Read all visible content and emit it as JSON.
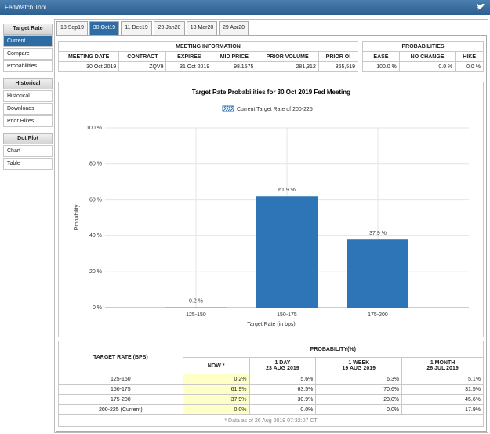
{
  "header": {
    "title": "FedWatch Tool"
  },
  "sidebar": [
    {
      "heading": "Target Rate",
      "items": [
        "Current",
        "Compare",
        "Probabilities"
      ]
    },
    {
      "heading": "Historical",
      "items": [
        "Historical",
        "Downloads",
        "Prior Hikes"
      ]
    },
    {
      "heading": "Dot Plot",
      "items": [
        "Chart",
        "Table"
      ]
    }
  ],
  "tabs": [
    "18 Sep19",
    "30 Oct19",
    "11 Dec19",
    "29 Jan20",
    "18 Mar20",
    "29 Apr20"
  ],
  "active_tab": 1,
  "meeting_info": {
    "title": "MEETING INFORMATION",
    "columns": [
      "MEETING DATE",
      "CONTRACT",
      "EXPIRES",
      "MID PRICE",
      "PRIOR VOLUME",
      "PRIOR OI"
    ],
    "row": [
      "30 Oct 2019",
      "ZQV9",
      "31 Oct 2019",
      "98.1575",
      "281,312",
      "365,519"
    ]
  },
  "probabilities": {
    "title": "PROBABILITIES",
    "columns": [
      "EASE",
      "NO CHANGE",
      "HIKE"
    ],
    "row": [
      "100.0 %",
      "0.0 %",
      "0.0 %"
    ]
  },
  "chart_data": {
    "type": "bar",
    "title": "Target Rate Probabilities for 30 Oct 2019 Fed Meeting",
    "legend_label": "Current Target Rate of 200-225",
    "categories": [
      "125-150",
      "150-175",
      "175-200"
    ],
    "values": [
      0.2,
      61.9,
      37.9
    ],
    "value_labels": [
      "0.2 %",
      "61.9 %",
      "37.9 %"
    ],
    "color": "#2d75b6",
    "xlabel": "Target Rate (in bps)",
    "ylabel": "Probability",
    "ylim": [
      0,
      100
    ],
    "yticks": [
      {
        "value": 0,
        "label": "0 %"
      },
      {
        "value": 20,
        "label": "20 %"
      },
      {
        "value": 40,
        "label": "40 %"
      },
      {
        "value": 60,
        "label": "60 %"
      },
      {
        "value": 80,
        "label": "80 %"
      },
      {
        "value": 100,
        "label": "100 %"
      }
    ],
    "grid": true
  },
  "table": {
    "row_header": "TARGET RATE (BPS)",
    "group_header": "PROBABILITY(%)",
    "columns": [
      {
        "label": "NOW *"
      },
      {
        "label": "1 DAY",
        "date": "23 AUG 2019"
      },
      {
        "label": "1 WEEK",
        "date": "19 AUG 2019"
      },
      {
        "label": "1 MONTH",
        "date": "26 JUL 2019"
      }
    ],
    "rows": [
      [
        "125-150",
        "0.2%",
        "5.6%",
        "6.3%",
        "5.1%"
      ],
      [
        "150-175",
        "61.9%",
        "63.5%",
        "70.6%",
        "31.5%"
      ],
      [
        "175-200",
        "37.9%",
        "30.9%",
        "23.0%",
        "45.6%"
      ],
      [
        "200-225 (Current)",
        "0.0%",
        "0.0%",
        "0.0%",
        "17.9%"
      ]
    ],
    "footnote": "* Data as of 26 Aug 2019 07:32:07 CT"
  }
}
